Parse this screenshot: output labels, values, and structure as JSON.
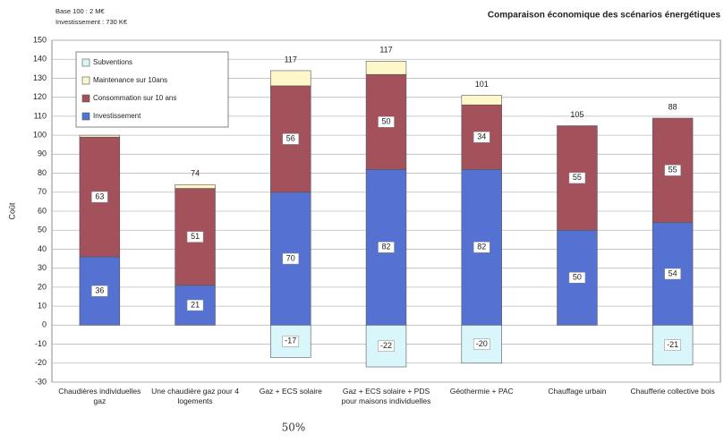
{
  "chart_data": {
    "type": "stacked_bar",
    "title": "Comparaison économique des scénarios énergétiques",
    "subtitle_lines": [
      "Base 100 : 2 M€",
      "Investissement : 730 K€"
    ],
    "y_label": "Coût",
    "annotation": "50%",
    "categories": [
      "Chaudières individuelles gaz",
      "Une chaudière gaz pour 4 logements",
      "Gaz + ECS solaire",
      "Gaz + ECS solaire + PDS pour maisons individuelles",
      "Géothermie + PAC",
      "Chauffage urbain",
      "Chaufferie collective bois"
    ],
    "series": [
      {
        "name": "Investissement",
        "color": "#5572d2",
        "values": [
          36,
          21,
          70,
          82,
          82,
          50,
          54
        ],
        "labeled": true
      },
      {
        "name": "Consommation sur 10 ans",
        "color": "#a3525c",
        "values": [
          63,
          51,
          56,
          50,
          34,
          55,
          55
        ],
        "labeled": true
      },
      {
        "name": "Maintenance sur 10ans",
        "color": "#fdf7c9",
        "values": [
          1,
          2,
          8,
          7,
          5,
          0,
          0
        ],
        "labeled": false
      },
      {
        "name": "Subventions",
        "color": "#d9f6fa",
        "values": [
          0,
          0,
          -17,
          -22,
          -20,
          0,
          -21
        ],
        "labeled": true
      }
    ],
    "totals": [
      null,
      74,
      117,
      117,
      101,
      105,
      88
    ],
    "ylim": [
      -30,
      150
    ],
    "yticks": [
      -30,
      -20,
      -10,
      0,
      10,
      20,
      30,
      40,
      50,
      60,
      70,
      80,
      90,
      100,
      110,
      120,
      130,
      140,
      150
    ],
    "grid": true,
    "legend": "top-left"
  }
}
